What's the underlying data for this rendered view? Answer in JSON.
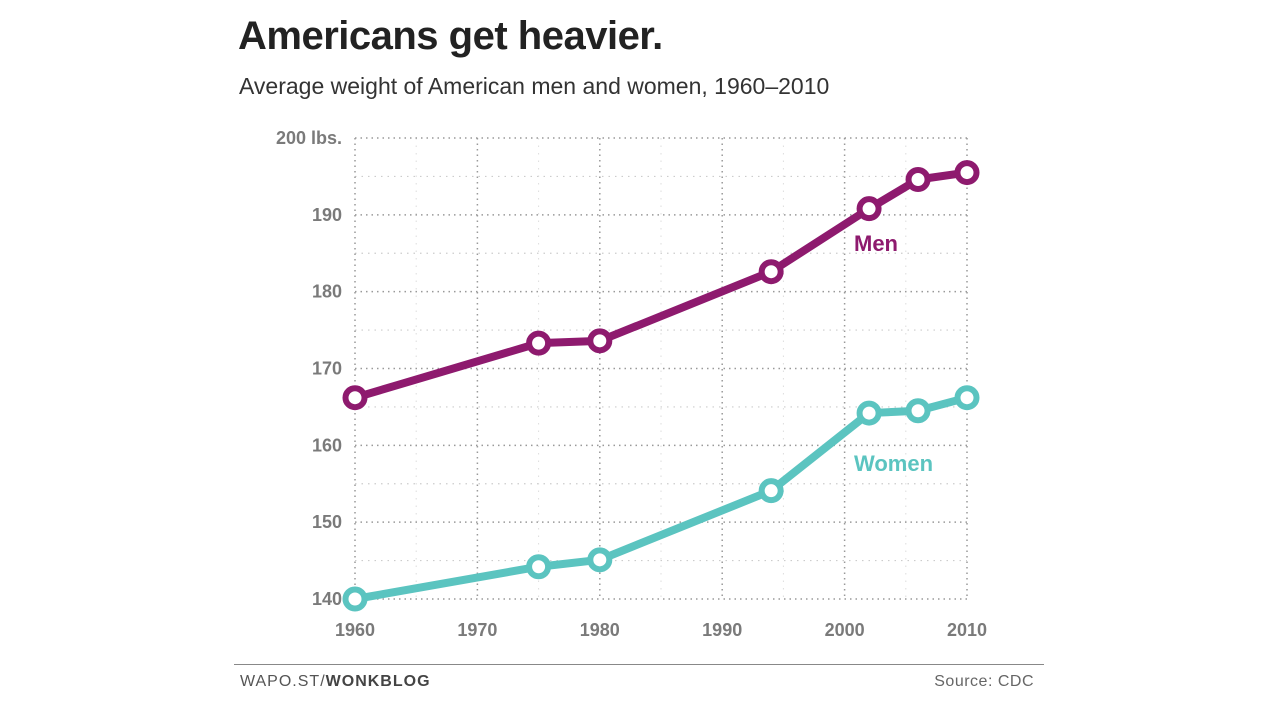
{
  "chart_data": {
    "type": "line",
    "title": "Americans get heavier.",
    "subtitle": "Average weight of American men and women, 1960–2010",
    "xlim": [
      1960,
      2010
    ],
    "ylim": [
      140,
      200
    ],
    "x_ticks": [
      "1960",
      "1970",
      "1980",
      "1990",
      "2000",
      "2010"
    ],
    "y_ticks": [
      "140",
      "150",
      "160",
      "170",
      "180",
      "190",
      "200 lbs."
    ],
    "grid": true,
    "series": [
      {
        "name": "Men",
        "color": "#8e1a6e",
        "x": [
          1960,
          1975,
          1980,
          1994,
          2002,
          2006,
          2010
        ],
        "y": [
          166.2,
          173.3,
          173.6,
          182.6,
          190.8,
          194.6,
          195.5
        ]
      },
      {
        "name": "Women",
        "color": "#5bc4c0",
        "x": [
          1960,
          1975,
          1980,
          1994,
          2002,
          2006,
          2010
        ],
        "y": [
          140.0,
          144.2,
          145.1,
          154.1,
          164.2,
          164.5,
          166.2
        ]
      }
    ]
  },
  "footer": {
    "credit_prefix": "WAPO.ST/",
    "credit_bold": "WONKBLOG",
    "source": "Source: CDC"
  }
}
